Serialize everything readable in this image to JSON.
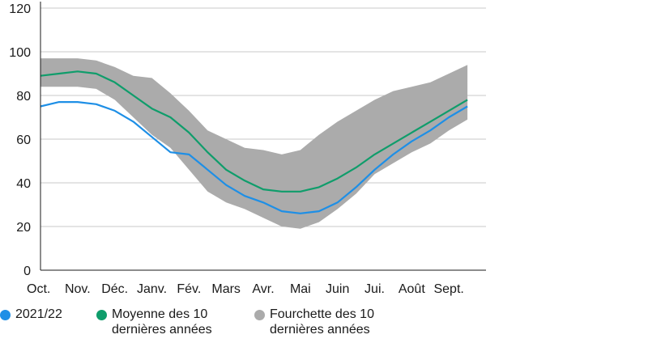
{
  "chart_data": {
    "type": "area",
    "x_tick_labels": [
      "Oct.",
      "Nov.",
      "Déc.",
      "Janv.",
      "Fév.",
      "Mars",
      "Avr.",
      "Mai",
      "Juin",
      "Jui.",
      "Août",
      "Sept."
    ],
    "ylim": [
      0,
      120
    ],
    "yticks": [
      0,
      20,
      40,
      60,
      80,
      100,
      120
    ],
    "grid": true,
    "legend_placement": "bottom",
    "x_month_index": [
      0,
      0.5,
      1,
      1.5,
      2,
      2.5,
      3,
      3.5,
      4,
      4.5,
      5,
      5.5,
      6,
      6.5,
      7,
      7.5,
      8,
      8.5,
      9,
      9.5,
      10,
      10.5,
      11,
      11.5
    ],
    "series": [
      {
        "name": "2021/22",
        "color": "#1e8fe6",
        "type": "line",
        "values": [
          75,
          77,
          77,
          76,
          73,
          68,
          61,
          54,
          53,
          46,
          39,
          34,
          31,
          27,
          26,
          27,
          31,
          38,
          46,
          53,
          59,
          64,
          70,
          75
        ]
      },
      {
        "name": "Moyenne des 10 dernières années",
        "color": "#0f9d6b",
        "type": "line",
        "values": [
          89,
          90,
          91,
          90,
          86,
          80,
          74,
          70,
          63,
          54,
          46,
          41,
          37,
          36,
          36,
          38,
          42,
          47,
          53,
          58,
          63,
          68,
          73,
          78
        ]
      },
      {
        "name": "Fourchette des 10 dernières années",
        "color": "#ababab",
        "type": "band",
        "upper": [
          97,
          97,
          97,
          96,
          93,
          89,
          88,
          81,
          73,
          64,
          60,
          56,
          55,
          53,
          55,
          62,
          68,
          73,
          78,
          82,
          84,
          86,
          90,
          94
        ],
        "lower": [
          84,
          84,
          84,
          83,
          78,
          70,
          62,
          56,
          46,
          36,
          31,
          28,
          24,
          20,
          19,
          22,
          28,
          35,
          44,
          49,
          54,
          58,
          64,
          69
        ]
      }
    ]
  }
}
